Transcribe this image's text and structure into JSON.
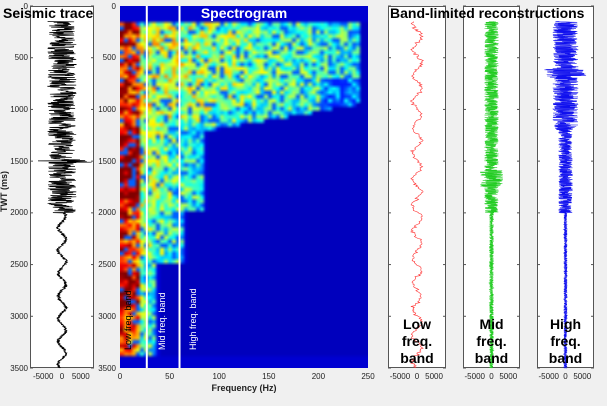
{
  "chart_data": [
    {
      "type": "line",
      "title": "Seismic trace",
      "ylabel": "TWT (ms)",
      "ylim": [
        0,
        3500
      ],
      "y_reversed": true,
      "xlim": [
        -8500,
        8500
      ],
      "xticks": [
        "-5000",
        "0",
        "5000"
      ],
      "yticks": [
        "0",
        "500",
        "1000",
        "1500",
        "2000",
        "2500",
        "3000",
        "3500"
      ],
      "color": "#000000"
    },
    {
      "type": "heatmap",
      "title": "Spectrogram",
      "xlabel": "Frequency (Hz)",
      "xlim": [
        0,
        250
      ],
      "ylim": [
        0,
        3500
      ],
      "y_reversed": true,
      "xticks": [
        "0",
        "50",
        "100",
        "150",
        "200",
        "250"
      ],
      "yticks": [
        "0",
        "500",
        "1000",
        "1500",
        "2000",
        "2500",
        "3000",
        "3500"
      ],
      "colormap": "jet",
      "band_edges_hz": [
        27,
        60
      ],
      "band_labels": [
        "Low freq. band",
        "Mid freq. band",
        "High freq. band"
      ]
    },
    {
      "type": "line",
      "title": "Band-limited reconstructions",
      "panels": [
        {
          "label_lines": [
            "Low",
            "freq.",
            "band"
          ],
          "color": "#ff3030"
        },
        {
          "label_lines": [
            "Mid",
            "freq.",
            "band"
          ],
          "color": "#22cc22"
        },
        {
          "label_lines": [
            "High",
            "freq.",
            "band"
          ],
          "color": "#1010ee"
        }
      ],
      "xlim": [
        -8500,
        8500
      ],
      "xticks": [
        "-5000",
        "0",
        "5000"
      ],
      "ylim": [
        0,
        3500
      ]
    }
  ]
}
